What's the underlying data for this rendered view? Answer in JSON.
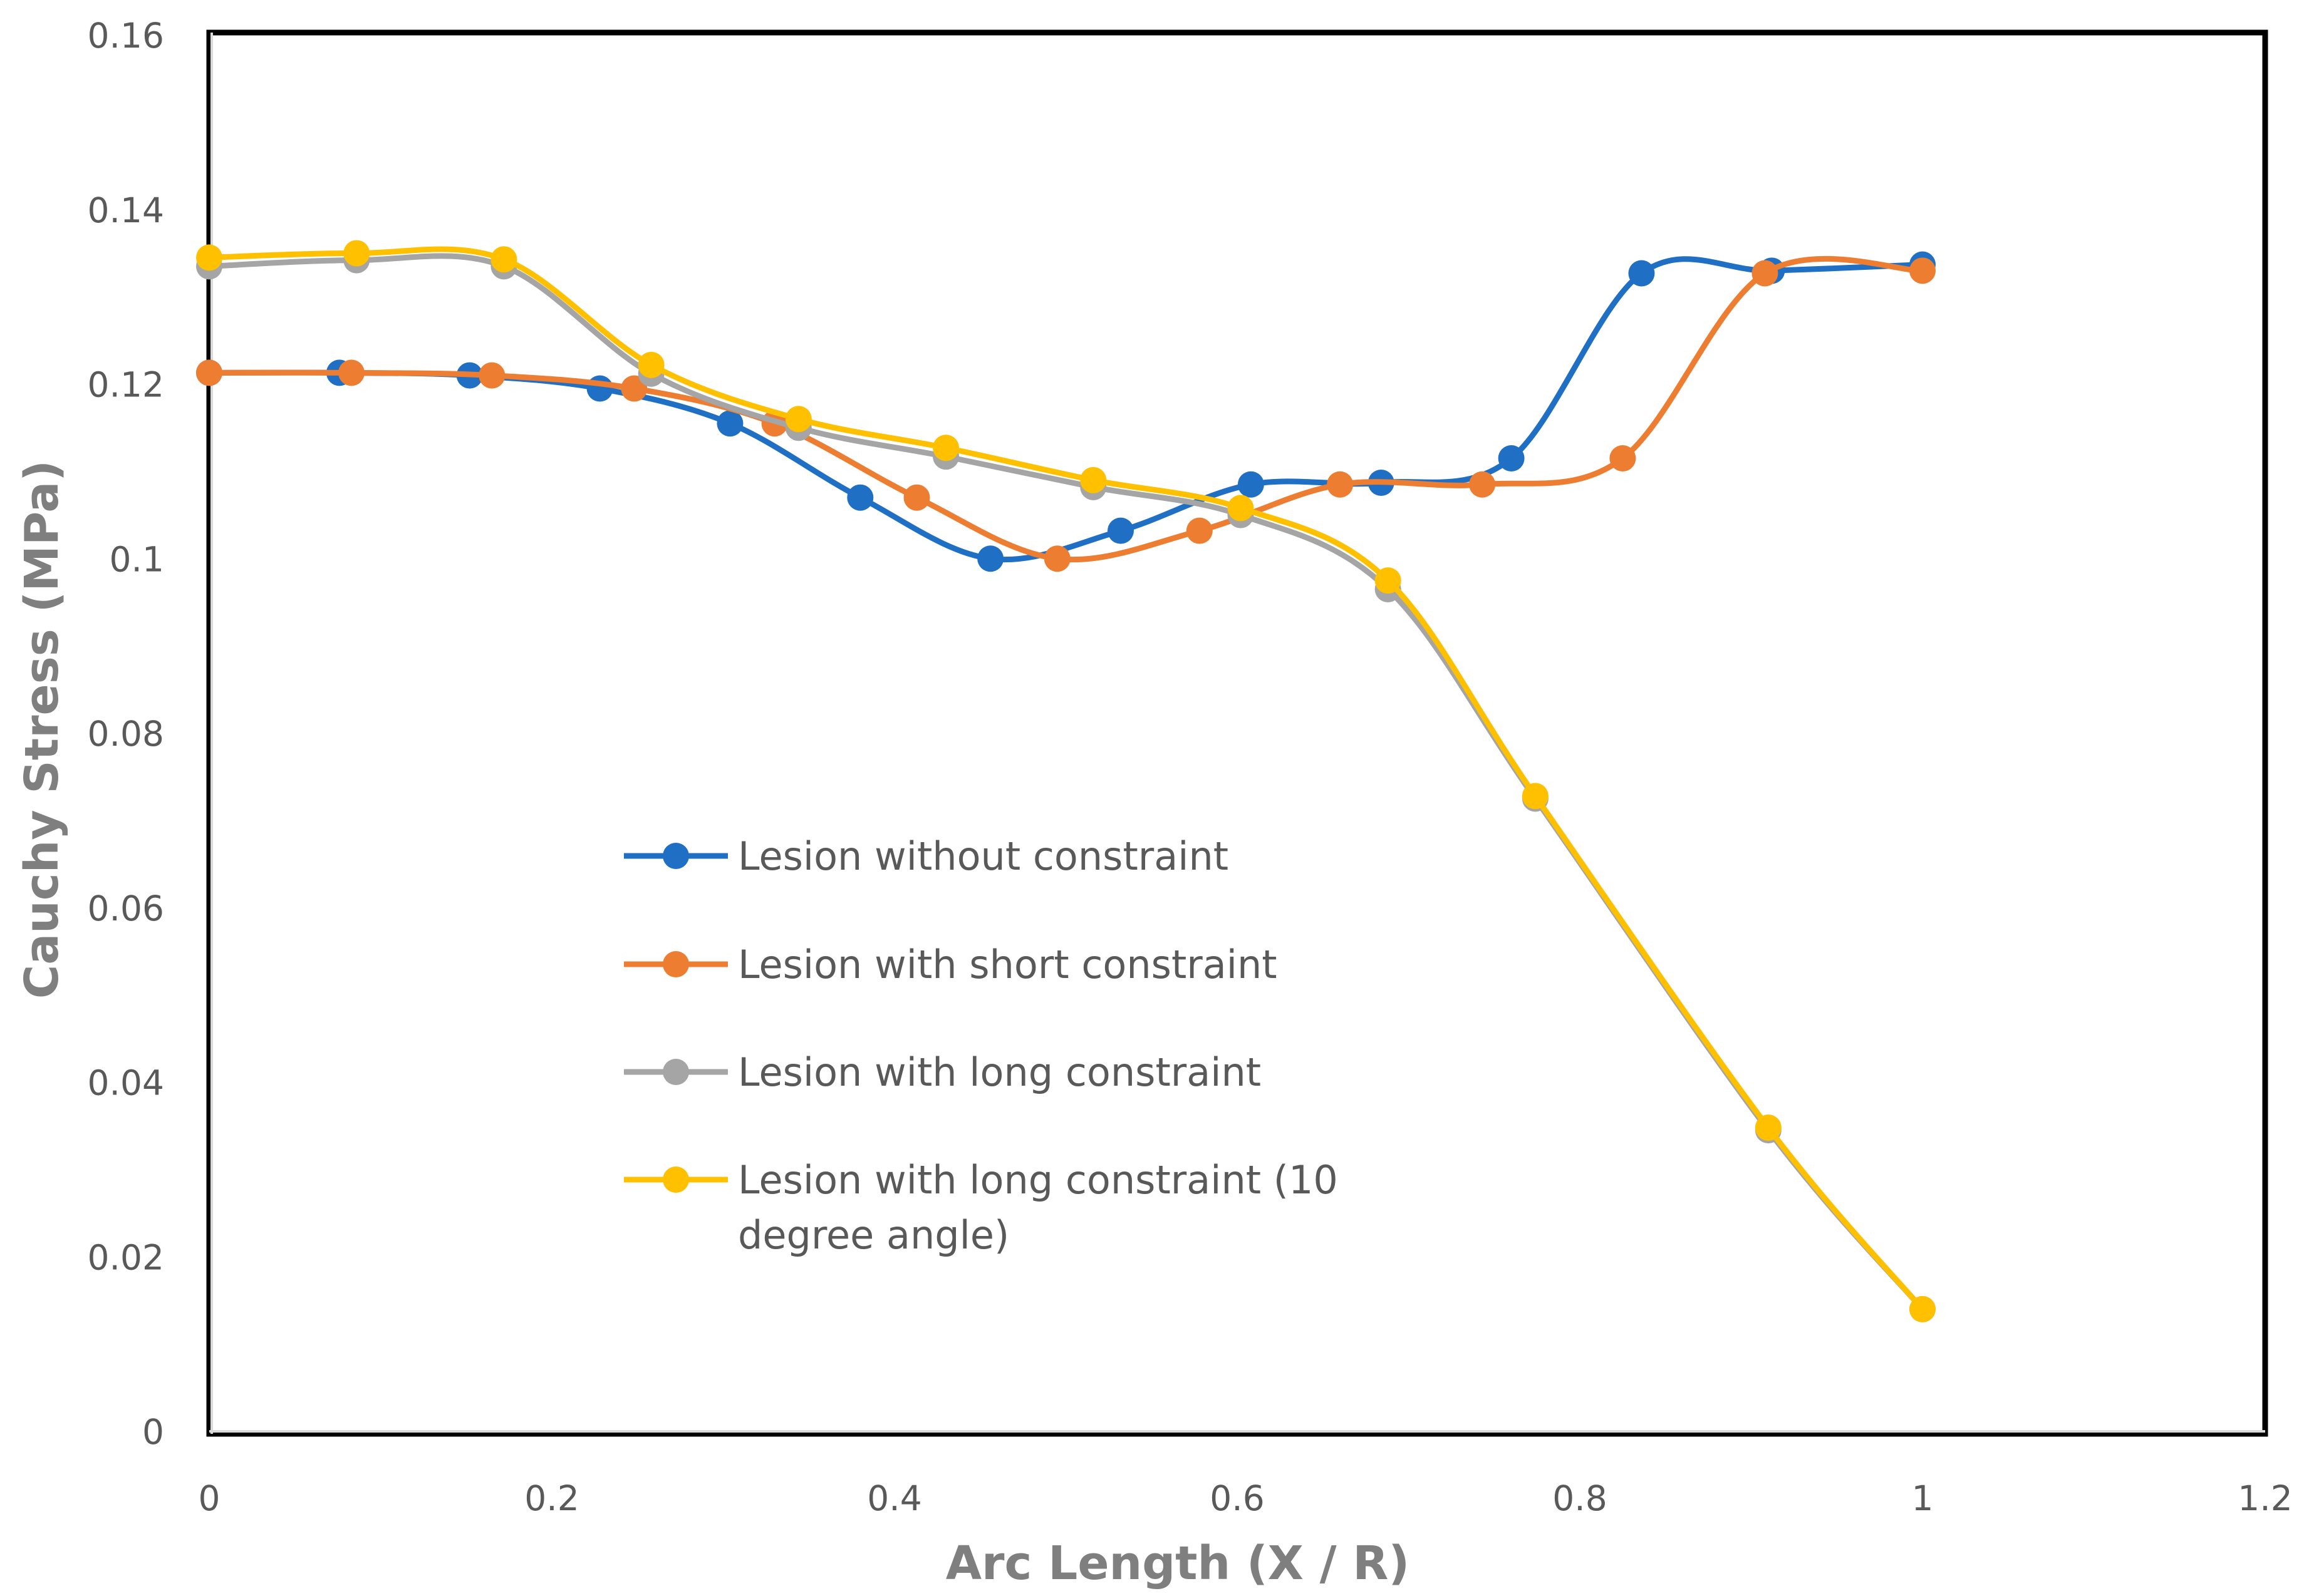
{
  "chart_data": {
    "type": "line",
    "title": "",
    "xlabel": "Arc Length (X / R)",
    "ylabel": "Cauchy  Stress (MPa)",
    "xlim": [
      0,
      1.2
    ],
    "ylim": [
      0,
      0.16
    ],
    "x_ticks": [
      "0",
      "0.2",
      "0.4",
      "0.6",
      "0.8",
      "1",
      "1.2"
    ],
    "y_ticks": [
      "0",
      "0.02",
      "0.04",
      "0.06",
      "0.08",
      "0.1",
      "0.12",
      "0.14",
      "0.16"
    ],
    "grid": false,
    "legend_position": "center-left",
    "series": [
      {
        "name": "Lesion without constraint",
        "color": "#1f6fc5",
        "x": [
          0,
          0.076,
          0.152,
          0.228,
          0.304,
          0.38,
          0.456,
          0.532,
          0.608,
          0.684,
          0.76,
          0.836,
          0.912,
          1.0
        ],
        "y": [
          0.1213,
          0.1213,
          0.121,
          0.1195,
          0.1155,
          0.107,
          0.1,
          0.1032,
          0.1085,
          0.1087,
          0.1115,
          0.1327,
          0.133,
          0.1337
        ]
      },
      {
        "name": "Lesion with short constraint",
        "color": "#ed7d31",
        "x": [
          0,
          0.083,
          0.165,
          0.248,
          0.33,
          0.413,
          0.495,
          0.578,
          0.66,
          0.743,
          0.825,
          0.908,
          1.0
        ],
        "y": [
          0.1213,
          0.1213,
          0.121,
          0.1195,
          0.1155,
          0.107,
          0.1,
          0.1032,
          0.1085,
          0.1085,
          0.1115,
          0.1327,
          0.133
        ]
      },
      {
        "name": "Lesion with long constraint",
        "color": "#a5a5a5",
        "x": [
          0,
          0.086,
          0.172,
          0.258,
          0.344,
          0.43,
          0.516,
          0.602,
          0.688,
          0.774,
          0.91,
          1.0
        ],
        "y": [
          0.1335,
          0.1342,
          0.1335,
          0.1212,
          0.115,
          0.1117,
          0.1082,
          0.105,
          0.0965,
          0.0725,
          0.0345,
          0.014
        ]
      },
      {
        "name": "Lesion with long constraint (10 degree angle)",
        "name_lines": [
          "Lesion with long constraint (10",
          "degree angle)"
        ],
        "color": "#ffc000",
        "x": [
          0,
          0.086,
          0.172,
          0.258,
          0.344,
          0.43,
          0.516,
          0.602,
          0.688,
          0.774,
          0.91,
          1.0
        ],
        "y": [
          0.1345,
          0.135,
          0.1343,
          0.1222,
          0.116,
          0.1127,
          0.109,
          0.1058,
          0.0975,
          0.0728,
          0.0348,
          0.014
        ]
      }
    ]
  }
}
